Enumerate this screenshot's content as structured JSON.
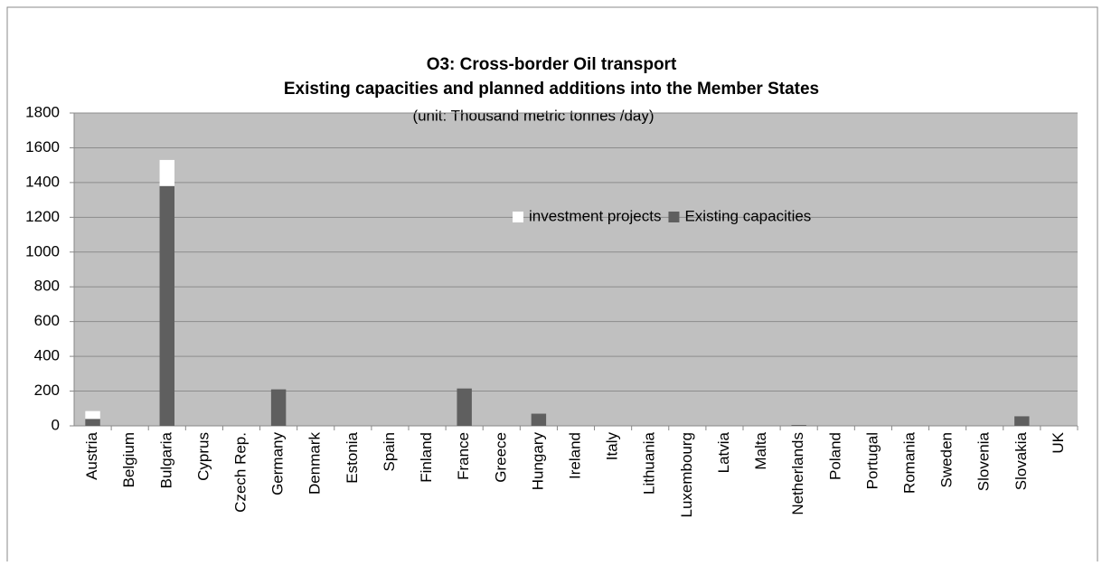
{
  "chart_data": {
    "type": "stacked_bar",
    "title": "O3: Cross-border Oil transport",
    "subtitle": "Existing capacities and planned additions into the Member States",
    "unit_note": "(unit: Thousand metric tonnes /day)",
    "categories": [
      "Austria",
      "Belgium",
      "Bulgaria",
      "Cyprus",
      "Czech Rep.",
      "Germany",
      "Denmark",
      "Estonia",
      "Spain",
      "Finland",
      "France",
      "Greece",
      "Hungary",
      "Ireland",
      "Italy",
      "Lithuania",
      "Luxembourg",
      "Latvia",
      "Malta",
      "Netherlands",
      "Poland",
      "Portugal",
      "Romania",
      "Sweden",
      "Slovenia",
      "Slovakia",
      "UK"
    ],
    "series": [
      {
        "name": "Existing capacities",
        "color": "#5f5f5f",
        "values": [
          40,
          0,
          1380,
          0,
          0,
          210,
          0,
          0,
          0,
          0,
          215,
          0,
          70,
          0,
          0,
          0,
          0,
          0,
          0,
          5,
          0,
          0,
          0,
          0,
          0,
          55,
          0
        ]
      },
      {
        "name": "investment projects",
        "color": "#ffffff",
        "values": [
          45,
          0,
          150,
          0,
          0,
          0,
          0,
          0,
          0,
          0,
          0,
          0,
          0,
          0,
          0,
          0,
          0,
          0,
          0,
          0,
          0,
          0,
          0,
          0,
          0,
          0,
          0
        ]
      }
    ],
    "ylim": [
      0,
      1800
    ],
    "yticks": [
      0,
      200,
      400,
      600,
      800,
      1000,
      1200,
      1400,
      1600,
      1800
    ],
    "grid": true,
    "legend": "center",
    "plot_background": "#c0c0c0"
  }
}
